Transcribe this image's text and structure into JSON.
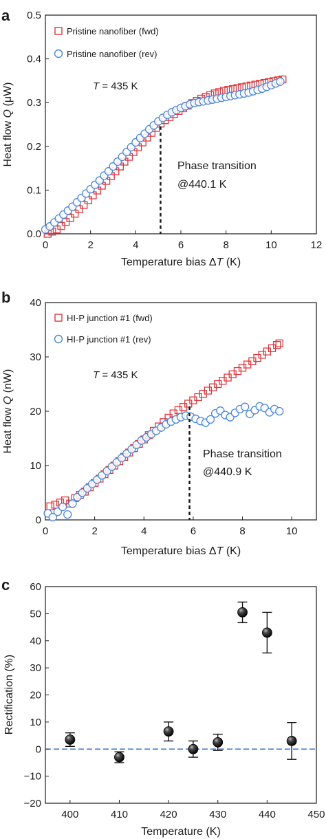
{
  "chart_data": [
    {
      "panel": "a",
      "type": "scatter",
      "xlabel_prefix": "Temperature bias Δ",
      "xlabel_var": "T",
      "xlabel_suffix": " (K)",
      "ylabel_prefix": "Heat flow ",
      "ylabel_var": "Q",
      "ylabel_suffix": " (μW)",
      "xlim": [
        0,
        12
      ],
      "ylim": [
        0,
        0.5
      ],
      "xticks": [
        "0",
        "2",
        "4",
        "6",
        "8",
        "10",
        "12"
      ],
      "yticks": [
        "0.0",
        "0.1",
        "0.2",
        "0.3",
        "0.4",
        "0.5"
      ],
      "annotation_T_var": "T",
      "annotation_T_value": " = 435 K",
      "phase_line1": "Phase transition",
      "phase_line2": "@440.1 K",
      "transition_x": 5.1,
      "legend_position": "top-left",
      "series": [
        {
          "name": "Pristine nanofiber (fwd)",
          "marker": "square",
          "color": "#e0353b",
          "x": [
            0.1,
            0.3,
            0.5,
            0.7,
            0.9,
            1.1,
            1.3,
            1.5,
            1.7,
            1.9,
            2.1,
            2.3,
            2.5,
            2.7,
            2.9,
            3.1,
            3.3,
            3.5,
            3.7,
            3.9,
            4.1,
            4.3,
            4.5,
            4.7,
            4.9,
            5.1,
            5.3,
            5.5,
            5.7,
            5.9,
            6.1,
            6.3,
            6.5,
            6.7,
            6.9,
            7.1,
            7.3,
            7.5,
            7.7,
            7.9,
            8.1,
            8.3,
            8.5,
            8.7,
            8.9,
            9.1,
            9.3,
            9.5,
            9.7,
            9.9,
            10.1,
            10.3,
            10.5
          ],
          "y": [
            0.0,
            0.005,
            0.01,
            0.018,
            0.027,
            0.036,
            0.046,
            0.056,
            0.066,
            0.077,
            0.088,
            0.099,
            0.11,
            0.121,
            0.132,
            0.143,
            0.154,
            0.165,
            0.176,
            0.187,
            0.198,
            0.209,
            0.22,
            0.231,
            0.242,
            0.252,
            0.26,
            0.267,
            0.274,
            0.281,
            0.287,
            0.293,
            0.299,
            0.304,
            0.309,
            0.313,
            0.317,
            0.321,
            0.324,
            0.327,
            0.329,
            0.331,
            0.333,
            0.335,
            0.337,
            0.339,
            0.341,
            0.343,
            0.345,
            0.347,
            0.349,
            0.351,
            0.353
          ]
        },
        {
          "name": "Pristine nanofiber (rev)",
          "marker": "circle",
          "color": "#4a86d8",
          "x": [
            0.0,
            0.2,
            0.4,
            0.6,
            0.8,
            1.0,
            1.2,
            1.4,
            1.6,
            1.8,
            2.0,
            2.2,
            2.4,
            2.6,
            2.8,
            3.0,
            3.2,
            3.4,
            3.6,
            3.8,
            4.0,
            4.2,
            4.4,
            4.6,
            4.8,
            5.0,
            5.2,
            5.4,
            5.6,
            5.8,
            6.0,
            6.2,
            6.4,
            6.6,
            6.8,
            7.0,
            7.2,
            7.4,
            7.6,
            7.8,
            8.0,
            8.2,
            8.4,
            8.6,
            8.8,
            9.0,
            9.2,
            9.4,
            9.6,
            9.8,
            10.0,
            10.2,
            10.4
          ],
          "y": [
            0.01,
            0.017,
            0.026,
            0.035,
            0.044,
            0.053,
            0.062,
            0.072,
            0.082,
            0.092,
            0.102,
            0.112,
            0.122,
            0.133,
            0.143,
            0.154,
            0.165,
            0.176,
            0.187,
            0.198,
            0.209,
            0.219,
            0.229,
            0.239,
            0.248,
            0.257,
            0.265,
            0.272,
            0.278,
            0.283,
            0.288,
            0.292,
            0.296,
            0.299,
            0.301,
            0.303,
            0.305,
            0.307,
            0.309,
            0.311,
            0.313,
            0.315,
            0.317,
            0.319,
            0.321,
            0.323,
            0.326,
            0.329,
            0.332,
            0.336,
            0.34,
            0.344,
            0.348
          ]
        }
      ]
    },
    {
      "panel": "b",
      "type": "scatter",
      "xlabel_prefix": "Temperature bias Δ",
      "xlabel_var": "T",
      "xlabel_suffix": " (K)",
      "ylabel_prefix": "Heat flow ",
      "ylabel_var": "Q",
      "ylabel_suffix": " (nW)",
      "xlim": [
        0,
        11
      ],
      "ylim": [
        0,
        40
      ],
      "xticks": [
        "0",
        "2",
        "4",
        "6",
        "8",
        "10"
      ],
      "yticks": [
        "0",
        "10",
        "20",
        "30",
        "40"
      ],
      "annotation_T_var": "T",
      "annotation_T_value": " = 435 K",
      "phase_line1": "Phase transition",
      "phase_line2": "@440.9 K",
      "transition_x": 5.85,
      "legend_position": "top-left",
      "series": [
        {
          "name": "HI-P junction #1 (fwd)",
          "marker": "square",
          "color": "#e0353b",
          "x": [
            0.2,
            0.4,
            0.6,
            0.8,
            1.0,
            1.2,
            1.4,
            1.6,
            1.8,
            2.0,
            2.2,
            2.4,
            2.6,
            2.8,
            3.0,
            3.2,
            3.4,
            3.6,
            3.8,
            4.0,
            4.2,
            4.4,
            4.6,
            4.8,
            5.0,
            5.2,
            5.4,
            5.6,
            5.8,
            6.0,
            6.2,
            6.4,
            6.6,
            6.8,
            7.0,
            7.2,
            7.4,
            7.6,
            7.8,
            8.0,
            8.2,
            8.4,
            8.6,
            8.8,
            9.0,
            9.2,
            9.4,
            9.5
          ],
          "y": [
            2.5,
            2.8,
            3.2,
            3.6,
            3.0,
            4.0,
            4.6,
            5.2,
            6.0,
            6.8,
            7.6,
            8.4,
            9.2,
            10.0,
            10.8,
            11.6,
            12.4,
            13.2,
            14.0,
            14.8,
            15.6,
            16.4,
            17.2,
            18.0,
            18.8,
            19.6,
            20.2,
            20.8,
            21.4,
            22.0,
            22.6,
            23.2,
            23.8,
            24.4,
            25.0,
            25.6,
            26.2,
            26.8,
            27.4,
            28.0,
            28.6,
            29.2,
            29.8,
            30.4,
            31.0,
            31.6,
            32.2,
            32.5
          ]
        },
        {
          "name": "HI-P junction #1 (rev)",
          "marker": "circle",
          "color": "#4a86d8",
          "x": [
            0.1,
            0.3,
            0.5,
            0.7,
            0.9,
            1.1,
            1.3,
            1.5,
            1.7,
            1.9,
            2.1,
            2.3,
            2.5,
            2.7,
            2.9,
            3.1,
            3.3,
            3.5,
            3.7,
            3.9,
            4.1,
            4.3,
            4.5,
            4.7,
            4.9,
            5.1,
            5.3,
            5.5,
            5.7,
            5.9,
            6.1,
            6.3,
            6.5,
            6.7,
            6.9,
            7.1,
            7.3,
            7.5,
            7.7,
            7.9,
            8.1,
            8.3,
            8.5,
            8.7,
            8.9,
            9.1,
            9.3,
            9.5
          ],
          "y": [
            1.2,
            0.5,
            1.5,
            2.4,
            1.0,
            3.0,
            4.2,
            5.0,
            5.8,
            6.6,
            7.4,
            8.2,
            9.0,
            9.8,
            10.6,
            11.4,
            12.2,
            13.0,
            13.8,
            14.6,
            15.2,
            15.8,
            16.4,
            17.0,
            17.6,
            18.1,
            18.5,
            18.9,
            19.2,
            19.0,
            18.6,
            18.2,
            17.9,
            18.5,
            19.6,
            20.1,
            19.3,
            18.9,
            19.7,
            20.4,
            20.8,
            19.5,
            20.2,
            20.9,
            20.6,
            19.8,
            20.4,
            20.0
          ]
        }
      ]
    },
    {
      "panel": "c",
      "type": "scatter",
      "xlabel": "Temperature (K)",
      "ylabel": "Rectification (%)",
      "xlim": [
        395,
        450
      ],
      "ylim": [
        -20,
        60
      ],
      "xticks": [
        "400",
        "410",
        "420",
        "430",
        "440",
        "450"
      ],
      "xtick_values": [
        400,
        410,
        420,
        430,
        440,
        450
      ],
      "yticks": [
        "−20",
        "−10",
        "0",
        "10",
        "20",
        "30",
        "40",
        "50",
        "60"
      ],
      "ytick_values": [
        -20,
        -10,
        0,
        10,
        20,
        30,
        40,
        50,
        60
      ],
      "reference_line_y": 0,
      "reference_line_color": "#2d6fd6",
      "series": [
        {
          "marker": "sphere",
          "color": "#111111",
          "x": [
            400,
            410,
            420,
            425,
            430,
            435,
            440,
            445
          ],
          "y": [
            3.5,
            -3.0,
            6.5,
            0.0,
            2.5,
            50.5,
            43.0,
            3.0
          ],
          "err": [
            2.5,
            2.0,
            3.5,
            3.0,
            3.0,
            3.8,
            7.5,
            6.8
          ]
        }
      ]
    }
  ],
  "panel_labels": [
    "a",
    "b",
    "c"
  ]
}
